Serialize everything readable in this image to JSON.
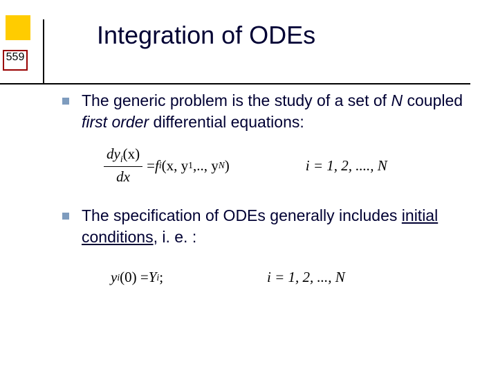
{
  "page_number": "559",
  "title": "Integration of ODEs",
  "bullets": [
    {
      "pre": "The generic problem is the study of a set of ",
      "em": "N",
      "mid": " coupled ",
      "em2": "first order",
      "post": " differential equations:"
    },
    {
      "pre": "The specification of ODEs generally includes ",
      "under": "initial conditions",
      "post": ", i. e. :"
    }
  ],
  "eq1": {
    "lhs_num": "dy",
    "lhs_num_sub": "i",
    "lhs_num_arg": "(x)",
    "lhs_den": "dx",
    "eq": " = ",
    "rhs_f": "f",
    "rhs_f_sub": "i",
    "rhs_args": "(x, y",
    "rhs_args_sub1": "1",
    "rhs_args_mid": ",.., y",
    "rhs_args_sub2": "N",
    "rhs_args_close": ")",
    "index": "i = 1, 2, ...., N"
  },
  "eq2": {
    "lhs_y": "y",
    "lhs_sub": "i",
    "lhs_arg": "(0) = ",
    "rhs_Y": "Y",
    "rhs_sub": "i",
    "semi": ";",
    "index": "i = 1, 2, ..., N"
  },
  "colors": {
    "yellow": "#ffcc00",
    "red_border": "#990000",
    "bullet": "#7e9cbe",
    "text": "#000033",
    "background": "#ffffff"
  }
}
